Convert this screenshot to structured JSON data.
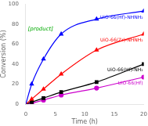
{
  "chart_data": {
    "type": "line",
    "xlabel": "Time (h)",
    "ylabel": "Conversion (%)",
    "xlim": [
      0,
      20
    ],
    "ylim": [
      0,
      100
    ],
    "xticks": [
      0,
      5,
      10,
      15,
      20
    ],
    "yticks": [
      0,
      20,
      40,
      60,
      80,
      100
    ],
    "grid": false,
    "legend": "none",
    "series": [
      {
        "name": "UiO-66(Hf)-NHNH₂",
        "color": "#0000ff",
        "marker": "triangle",
        "x": [
          0,
          1,
          3,
          6,
          12,
          20
        ],
        "values": [
          0,
          20,
          45,
          70,
          85,
          93
        ]
      },
      {
        "name": "UiO-66(Zr)-NHNH₂",
        "color": "#ff0000",
        "marker": "triangle",
        "x": [
          0,
          1,
          3,
          6,
          12,
          20
        ],
        "values": [
          0,
          5,
          15,
          30,
          54,
          70
        ]
      },
      {
        "name": "UiO-66(Hf)-NH₂",
        "color": "#000000",
        "marker": "square",
        "x": [
          0,
          1,
          3,
          6,
          12,
          20
        ],
        "values": [
          0,
          2,
          6,
          12,
          22,
          40
        ]
      },
      {
        "name": "UiO-66(Hf)",
        "color": "#cc00cc",
        "marker": "circle",
        "x": [
          0,
          1,
          3,
          6,
          12,
          20
        ],
        "values": [
          0,
          1,
          4,
          9,
          16,
          27
        ]
      }
    ],
    "annotations": [
      {
        "text": "[product]",
        "x": 2.5,
        "y": 72,
        "color": "#00aa00"
      }
    ]
  }
}
